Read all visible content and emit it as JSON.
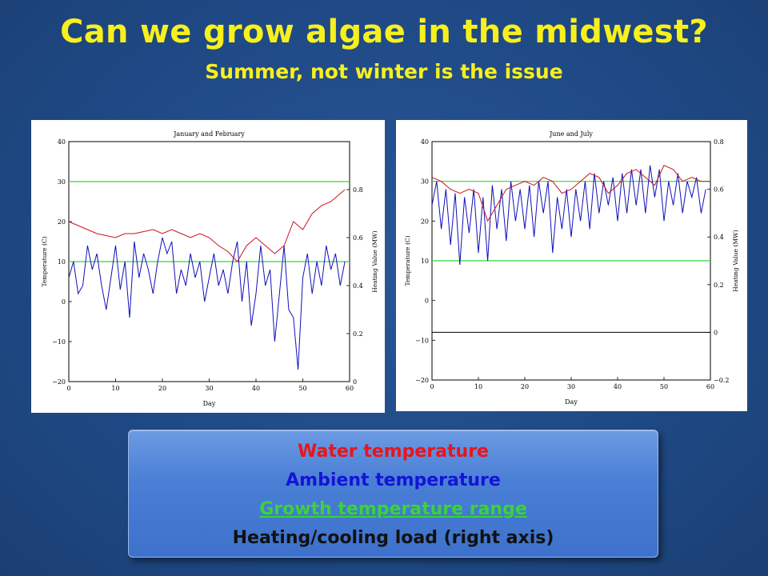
{
  "title": "Can we grow algae in the midwest?",
  "subtitle": "Summer, not winter is the issue",
  "colors": {
    "water": "#c8141a",
    "ambient": "#1010b8",
    "growth": "#35d635",
    "title": "#f8f01c",
    "background": "#1f4a86"
  },
  "legend": {
    "water": "Water temperature",
    "ambient": "Ambient temperature",
    "growth": "Growth temperature range",
    "heating": "Heating/cooling load (right axis)"
  },
  "chart_data": [
    {
      "type": "line",
      "title": "January and February",
      "xlabel": "Day",
      "ylabel": "Temperature (C)",
      "y2label": "Heating Value (MW)",
      "xlim": [
        0,
        60
      ],
      "ylim": [
        -20,
        40
      ],
      "y2lim": [
        0,
        1
      ],
      "xticks": [
        "0",
        "10",
        "20",
        "30",
        "40",
        "50",
        "60"
      ],
      "yticks": [
        "40",
        "30",
        "20",
        "10",
        "0",
        "-10",
        "-20"
      ],
      "y2ticks": [
        "0.8",
        "0.6",
        "0.4",
        "0.2",
        "0"
      ],
      "growth_range": [
        10,
        30
      ],
      "water_temperature": {
        "x": [
          0,
          2,
          4,
          6,
          8,
          10,
          12,
          14,
          16,
          18,
          20,
          22,
          24,
          26,
          28,
          30,
          32,
          34,
          36,
          38,
          40,
          42,
          44,
          46,
          48,
          50,
          52,
          54,
          56,
          58,
          59
        ],
        "y": [
          20,
          19,
          18,
          17,
          16.5,
          16,
          17,
          17,
          17.5,
          18,
          17,
          18,
          17,
          16,
          17,
          16,
          14,
          12.5,
          10,
          14,
          16,
          14,
          12,
          14,
          20,
          18,
          22,
          24,
          25,
          27,
          28
        ]
      },
      "ambient_temperature": {
        "x": [
          0,
          1,
          2,
          3,
          4,
          5,
          6,
          7,
          8,
          9,
          10,
          11,
          12,
          13,
          14,
          15,
          16,
          17,
          18,
          19,
          20,
          21,
          22,
          23,
          24,
          25,
          26,
          27,
          28,
          29,
          30,
          31,
          32,
          33,
          34,
          35,
          36,
          37,
          38,
          39,
          40,
          41,
          42,
          43,
          44,
          45,
          46,
          47,
          48,
          49,
          50,
          51,
          52,
          53,
          54,
          55,
          56,
          57,
          58,
          59
        ],
        "y": [
          6,
          10,
          2,
          4,
          14,
          8,
          12,
          4,
          -2,
          6,
          14,
          3,
          10,
          -4,
          15,
          6,
          12,
          8,
          2,
          10,
          16,
          12,
          15,
          2,
          8,
          4,
          12,
          6,
          10,
          0,
          6,
          12,
          4,
          8,
          2,
          10,
          15,
          0,
          10,
          -6,
          2,
          14,
          4,
          8,
          -10,
          2,
          14,
          -2,
          -4,
          -17,
          6,
          12,
          2,
          10,
          4,
          14,
          8,
          12,
          4,
          10
        ]
      }
    },
    {
      "type": "line",
      "title": "June and July",
      "xlabel": "Day",
      "ylabel": "Temperature (C)",
      "y2label": "Heating Value (MW)",
      "xlim": [
        0,
        60
      ],
      "ylim": [
        -20,
        40
      ],
      "y2lim": [
        -0.2,
        0.8
      ],
      "xticks": [
        "0",
        "10",
        "20",
        "30",
        "40",
        "50",
        "60"
      ],
      "yticks": [
        "40",
        "30",
        "20",
        "10",
        "0",
        "-10",
        "-20"
      ],
      "y2ticks": [
        "0.8",
        "0.6",
        "0.4",
        "0.2",
        "0",
        "-0.2"
      ],
      "growth_range": [
        10,
        30
      ],
      "heating_load": {
        "x": [
          0,
          60
        ],
        "y": [
          0,
          0
        ]
      },
      "water_temperature": {
        "x": [
          0,
          2,
          4,
          6,
          8,
          10,
          12,
          14,
          16,
          18,
          20,
          22,
          24,
          26,
          28,
          30,
          32,
          34,
          36,
          38,
          40,
          42,
          44,
          46,
          48,
          50,
          52,
          54,
          56,
          58,
          60
        ],
        "y": [
          31,
          30,
          28,
          27,
          28,
          27,
          20,
          24,
          28,
          29,
          30,
          29,
          31,
          30,
          27,
          28,
          30,
          32,
          31,
          27,
          29,
          32,
          33,
          31,
          29,
          34,
          33,
          30,
          31,
          30,
          30
        ]
      },
      "ambient_temperature": {
        "x": [
          0,
          1,
          2,
          3,
          4,
          5,
          6,
          7,
          8,
          9,
          10,
          11,
          12,
          13,
          14,
          15,
          16,
          17,
          18,
          19,
          20,
          21,
          22,
          23,
          24,
          25,
          26,
          27,
          28,
          29,
          30,
          31,
          32,
          33,
          34,
          35,
          36,
          37,
          38,
          39,
          40,
          41,
          42,
          43,
          44,
          45,
          46,
          47,
          48,
          49,
          50,
          51,
          52,
          53,
          54,
          55,
          56,
          57,
          58,
          59
        ],
        "y": [
          24,
          30,
          18,
          28,
          14,
          27,
          9,
          26,
          17,
          28,
          12,
          26,
          10,
          29,
          18,
          28,
          15,
          30,
          20,
          28,
          18,
          29,
          16,
          30,
          22,
          30,
          12,
          26,
          18,
          28,
          16,
          28,
          20,
          30,
          18,
          32,
          22,
          30,
          24,
          31,
          20,
          32,
          22,
          33,
          24,
          33,
          22,
          34,
          26,
          33,
          20,
          30,
          24,
          32,
          22,
          30,
          26,
          31,
          22,
          28
        ]
      }
    }
  ]
}
